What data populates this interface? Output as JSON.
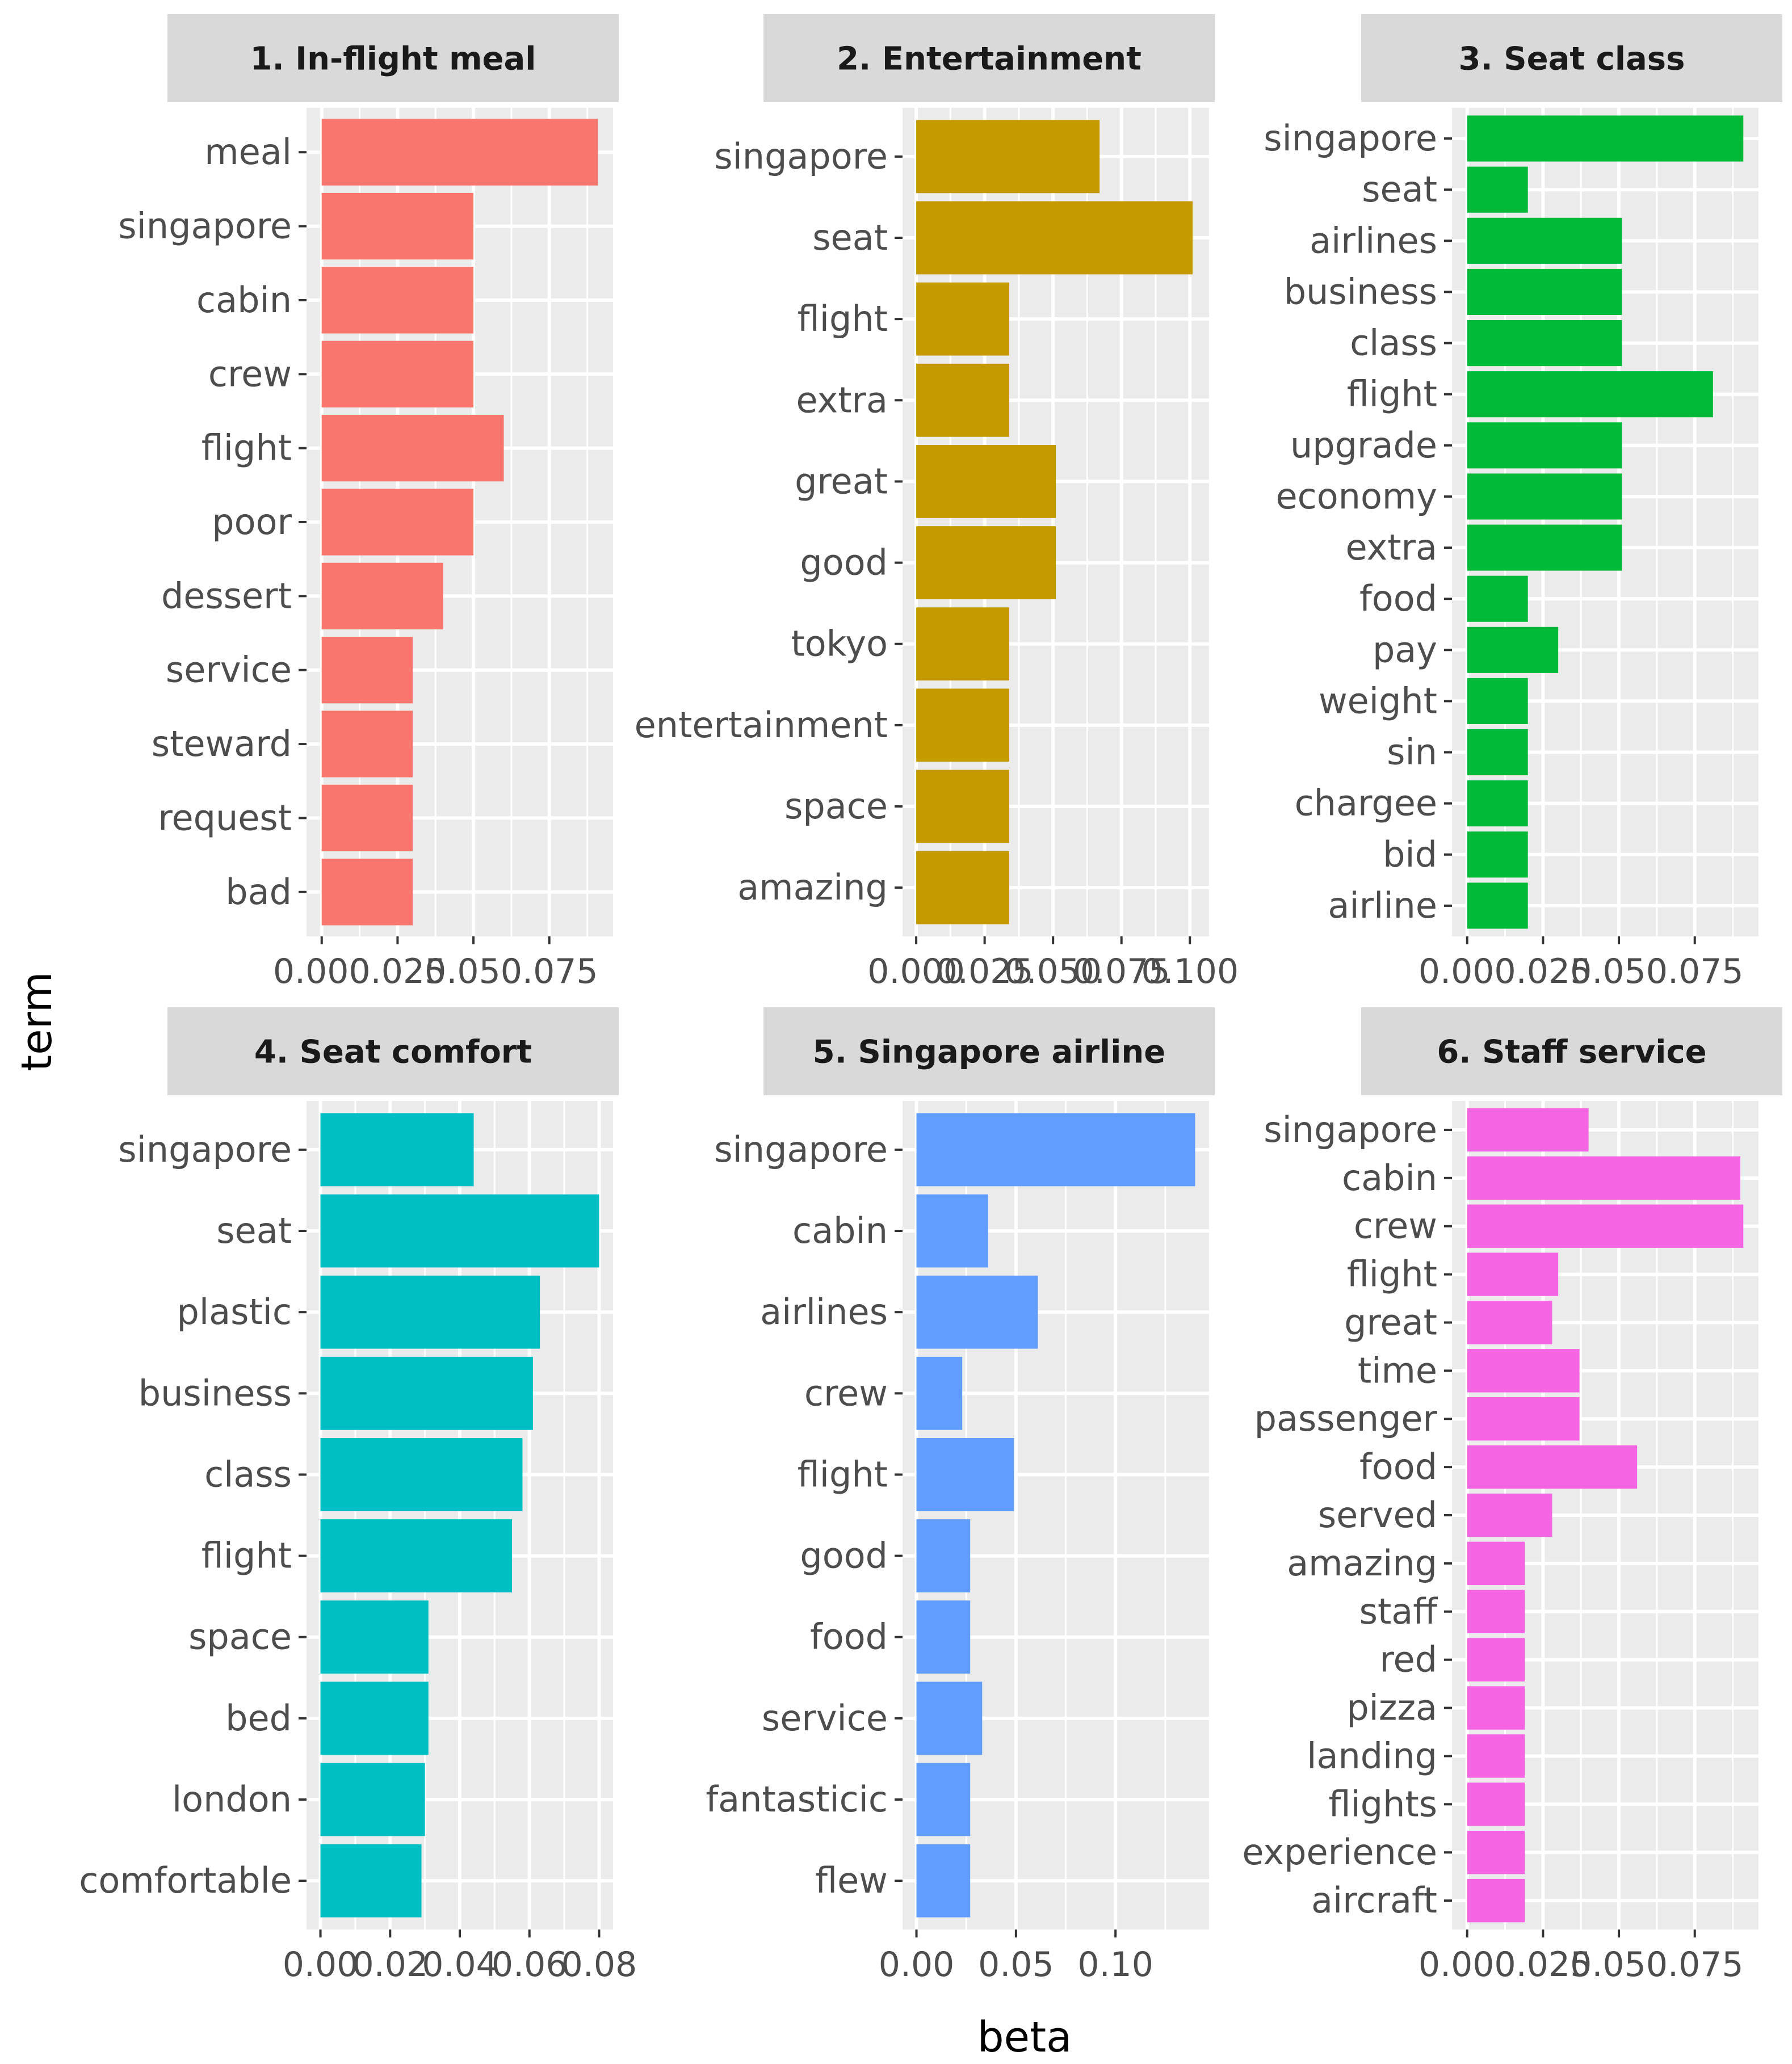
{
  "xlabel": "beta",
  "ylabel": "term",
  "chart_data": [
    {
      "type": "bar",
      "title": "1. In-flight meal",
      "color": "#F8766D",
      "categories": [
        "meal",
        "singapore",
        "cabin",
        "crew",
        "flight",
        "poor",
        "dessert",
        "service",
        "steward",
        "request",
        "bad"
      ],
      "values": [
        0.091,
        0.05,
        0.05,
        0.05,
        0.06,
        0.05,
        0.04,
        0.03,
        0.03,
        0.03,
        0.03
      ],
      "xlim": [
        -0.005,
        0.096
      ],
      "xticks": [
        0,
        0.025,
        0.05,
        0.075
      ],
      "xtick_labels": [
        "0.000",
        "0.025",
        "0.050",
        "0.075"
      ]
    },
    {
      "type": "bar",
      "title": "2. Entertainment",
      "color": "#C49A00",
      "categories": [
        "singapore",
        "seat",
        "flight",
        "extra",
        "great",
        "good",
        "tokyo",
        "entertainment",
        "space",
        "amazing"
      ],
      "values": [
        0.067,
        0.101,
        0.034,
        0.034,
        0.051,
        0.051,
        0.034,
        0.034,
        0.034,
        0.034
      ],
      "xlim": [
        -0.005,
        0.107
      ],
      "xticks": [
        0,
        0.025,
        0.05,
        0.075,
        0.1
      ],
      "xtick_labels": [
        "0.000",
        "0.025",
        "0.050",
        "0.075",
        "0.100"
      ]
    },
    {
      "type": "bar",
      "title": "3. Seat class",
      "color": "#00BA38",
      "categories": [
        "singapore",
        "seat",
        "airlines",
        "business",
        "class",
        "flight",
        "upgrade",
        "economy",
        "extra",
        "food",
        "pay",
        "weight",
        "sin",
        "chargee",
        "bid",
        "airline"
      ],
      "values": [
        0.091,
        0.02,
        0.051,
        0.051,
        0.051,
        0.081,
        0.051,
        0.051,
        0.051,
        0.02,
        0.03,
        0.02,
        0.02,
        0.02,
        0.02,
        0.02
      ],
      "xlim": [
        -0.005,
        0.096
      ],
      "xticks": [
        0,
        0.025,
        0.05,
        0.075
      ],
      "xtick_labels": [
        "0.000",
        "0.025",
        "0.050",
        "0.075"
      ]
    },
    {
      "type": "bar",
      "title": "4. Seat comfort",
      "color": "#00BFC4",
      "categories": [
        "singapore",
        "seat",
        "plastic",
        "business",
        "class",
        "flight",
        "space",
        "bed",
        "london",
        "comfortable"
      ],
      "values": [
        0.044,
        0.08,
        0.063,
        0.061,
        0.058,
        0.055,
        0.031,
        0.031,
        0.03,
        0.029
      ],
      "xlim": [
        -0.004,
        0.084
      ],
      "xticks": [
        0,
        0.02,
        0.04,
        0.06,
        0.08
      ],
      "xtick_labels": [
        "0.00",
        "0.02",
        "0.04",
        "0.06",
        "0.08"
      ]
    },
    {
      "type": "bar",
      "title": "5. Singapore airline",
      "color": "#619CFF",
      "categories": [
        "singapore",
        "cabin",
        "airlines",
        "crew",
        "flight",
        "good",
        "food",
        "service",
        "fantasticic",
        "flew"
      ],
      "values": [
        0.14,
        0.036,
        0.061,
        0.023,
        0.049,
        0.027,
        0.027,
        0.033,
        0.027,
        0.027
      ],
      "xlim": [
        -0.007,
        0.147
      ],
      "xticks": [
        0,
        0.05,
        0.1
      ],
      "xtick_labels": [
        "0.00",
        "0.05",
        "0.10"
      ]
    },
    {
      "type": "bar",
      "title": "6. Staff service",
      "color": "#F564E3",
      "categories": [
        "singapore",
        "cabin",
        "crew",
        "flight",
        "great",
        "time",
        "passenger",
        "food",
        "served",
        "amazing",
        "staff",
        "red",
        "pizza",
        "landing",
        "flights",
        "experience",
        "aircraft"
      ],
      "values": [
        0.04,
        0.09,
        0.091,
        0.03,
        0.028,
        0.037,
        0.037,
        0.056,
        0.028,
        0.019,
        0.019,
        0.019,
        0.019,
        0.019,
        0.019,
        0.019,
        0.019
      ],
      "xlim": [
        -0.005,
        0.096
      ],
      "xticks": [
        0,
        0.025,
        0.05,
        0.075
      ],
      "xtick_labels": [
        "0.000",
        "0.025",
        "0.050",
        "0.075"
      ]
    }
  ]
}
